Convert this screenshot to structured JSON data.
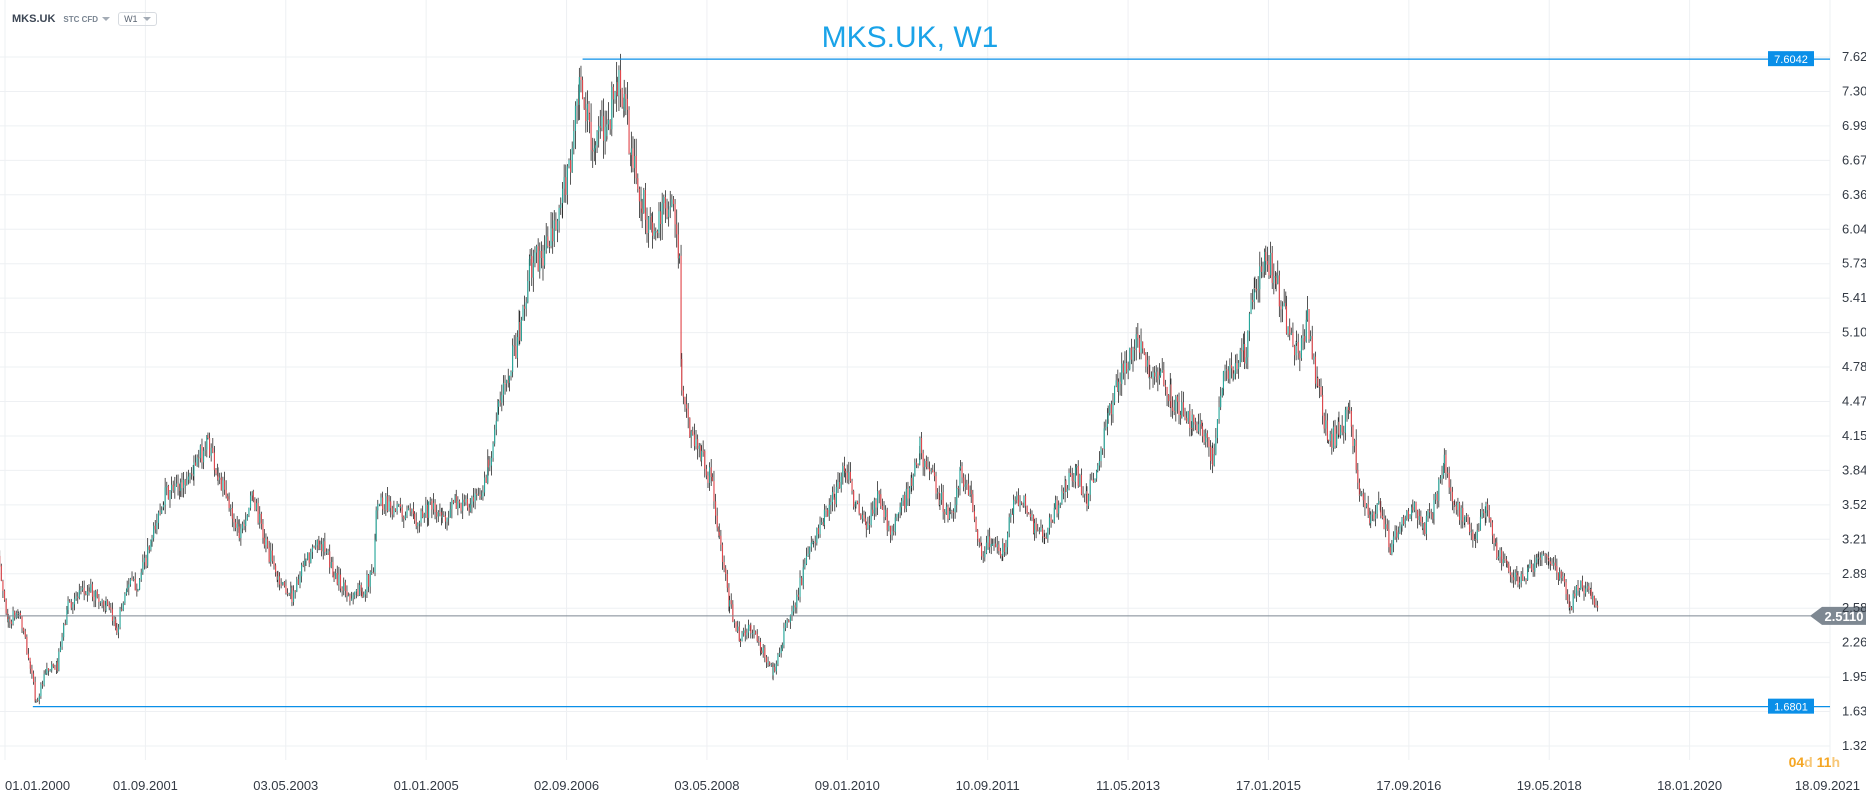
{
  "header": {
    "symbol": "MKS.UK",
    "instrument_type": "STC CFD",
    "timeframe": "W1"
  },
  "countdown": {
    "days": "04",
    "days_unit": "d",
    "hours": "11",
    "hours_unit": "h"
  },
  "colors": {
    "up": "#26a69a",
    "down": "#e0474c",
    "wick": "#2b2b2b",
    "hline": "#0a8fe8",
    "title": "#1aa3e8",
    "current_price": "#7e8892",
    "grid": "#eef0f3",
    "axis_text": "#333a44"
  },
  "chart_data": {
    "type": "candlestick",
    "title": "MKS.UK, W1",
    "y_ticks": [
      "7.6239",
      "7.3087",
      "6.9935",
      "6.6783",
      "6.3631",
      "6.0479",
      "5.7327",
      "5.4176",
      "5.1024",
      "4.7872",
      "4.4720",
      "4.1568",
      "3.8416",
      "3.5264",
      "3.2112",
      "2.8960",
      "2.5808",
      "2.2656",
      "1.9505",
      "1.6353",
      "1.3201"
    ],
    "x_ticks": [
      "01.01.2000",
      "01.09.2001",
      "03.05.2003",
      "01.01.2005",
      "02.09.2006",
      "03.05.2008",
      "09.01.2010",
      "10.09.2011",
      "11.05.2013",
      "17.01.2015",
      "17.09.2016",
      "19.05.2018",
      "18.01.2020",
      "18.09.2021"
    ],
    "x_range": [
      "2000-01-01",
      "2021-09-18"
    ],
    "y_range": [
      1.3201,
      7.6239
    ],
    "horizontal_lines": [
      {
        "label": "7.6042",
        "value": 7.6042,
        "start": "2006-11-15"
      },
      {
        "label": "1.6801",
        "value": 1.6801,
        "start": "2000-05-01"
      }
    ],
    "current_price": {
      "label": "2.5110",
      "value": 2.511
    },
    "series": [
      {
        "name": "",
        "path": [
          [
            "1999-11-25",
            3.1
          ],
          [
            "2000-01-15",
            2.45
          ],
          [
            "2000-03-01",
            2.55
          ],
          [
            "2000-04-20",
            2.05
          ],
          [
            "2000-05-15",
            1.72
          ],
          [
            "2000-07-01",
            2.0
          ],
          [
            "2000-08-15",
            2.05
          ],
          [
            "2000-10-01",
            2.62
          ],
          [
            "2001-01-01",
            2.75
          ],
          [
            "2001-03-15",
            2.6
          ],
          [
            "2001-05-01",
            2.4
          ],
          [
            "2001-06-15",
            2.8
          ],
          [
            "2001-08-01",
            2.8
          ],
          [
            "2001-10-01",
            3.2
          ],
          [
            "2001-11-20",
            3.6
          ],
          [
            "2002-02-01",
            3.7
          ],
          [
            "2002-04-01",
            3.85
          ],
          [
            "2002-06-01",
            4.12
          ],
          [
            "2002-07-15",
            3.8
          ],
          [
            "2002-09-01",
            3.5
          ],
          [
            "2002-10-15",
            3.3
          ],
          [
            "2002-12-15",
            3.6
          ],
          [
            "2003-02-01",
            3.2
          ],
          [
            "2003-04-01",
            2.85
          ],
          [
            "2003-06-01",
            2.7
          ],
          [
            "2003-08-01",
            3.0
          ],
          [
            "2003-10-01",
            3.2
          ],
          [
            "2003-12-01",
            2.9
          ],
          [
            "2004-02-01",
            2.7
          ],
          [
            "2004-04-01",
            2.75
          ],
          [
            "2004-05-20",
            2.9
          ],
          [
            "2004-06-01",
            3.55
          ],
          [
            "2004-07-20",
            3.55
          ],
          [
            "2004-09-15",
            3.45
          ],
          [
            "2004-11-15",
            3.4
          ],
          [
            "2005-01-15",
            3.5
          ],
          [
            "2005-03-15",
            3.4
          ],
          [
            "2005-05-15",
            3.55
          ],
          [
            "2005-07-15",
            3.5
          ],
          [
            "2005-09-01",
            3.6
          ],
          [
            "2005-10-01",
            3.9
          ],
          [
            "2005-11-15",
            4.4
          ],
          [
            "2006-01-01",
            4.8
          ],
          [
            "2006-02-15",
            5.1
          ],
          [
            "2006-04-01",
            5.7
          ],
          [
            "2006-05-20",
            5.8
          ],
          [
            "2006-07-15",
            6.0
          ],
          [
            "2006-08-20",
            6.3
          ],
          [
            "2006-10-01",
            6.8
          ],
          [
            "2006-11-01",
            7.3
          ],
          [
            "2006-12-15",
            7.0
          ],
          [
            "2007-01-10",
            6.8
          ],
          [
            "2007-03-01",
            7.0
          ],
          [
            "2007-04-15",
            7.4
          ],
          [
            "2007-05-15",
            7.2
          ],
          [
            "2007-06-15",
            6.7
          ],
          [
            "2007-08-01",
            6.3
          ],
          [
            "2007-09-15",
            6.0
          ],
          [
            "2007-10-20",
            6.1
          ],
          [
            "2007-12-01",
            6.4
          ],
          [
            "2008-01-10",
            5.8
          ],
          [
            "2008-01-20",
            4.5
          ],
          [
            "2008-03-01",
            4.2
          ],
          [
            "2008-04-15",
            4.0
          ],
          [
            "2008-06-01",
            3.7
          ],
          [
            "2008-07-01",
            3.2
          ],
          [
            "2008-08-15",
            2.6
          ],
          [
            "2008-10-01",
            2.3
          ],
          [
            "2008-11-15",
            2.4
          ],
          [
            "2009-01-01",
            2.2
          ],
          [
            "2009-02-20",
            2.0
          ],
          [
            "2009-04-01",
            2.3
          ],
          [
            "2009-05-20",
            2.6
          ],
          [
            "2009-07-01",
            2.9
          ],
          [
            "2009-08-15",
            3.2
          ],
          [
            "2009-10-01",
            3.4
          ],
          [
            "2009-11-15",
            3.6
          ],
          [
            "2010-01-01",
            3.9
          ],
          [
            "2010-02-15",
            3.5
          ],
          [
            "2010-04-01",
            3.3
          ],
          [
            "2010-05-20",
            3.6
          ],
          [
            "2010-07-15",
            3.3
          ],
          [
            "2010-09-01",
            3.5
          ],
          [
            "2010-10-15",
            3.7
          ],
          [
            "2010-11-20",
            4.05
          ],
          [
            "2011-01-01",
            3.8
          ],
          [
            "2011-02-15",
            3.6
          ],
          [
            "2011-04-01",
            3.4
          ],
          [
            "2011-05-15",
            3.8
          ],
          [
            "2011-07-01",
            3.6
          ],
          [
            "2011-08-15",
            3.1
          ],
          [
            "2011-10-01",
            3.2
          ],
          [
            "2011-11-15",
            3.1
          ],
          [
            "2012-01-01",
            3.5
          ],
          [
            "2012-02-15",
            3.6
          ],
          [
            "2012-04-01",
            3.3
          ],
          [
            "2012-05-15",
            3.2
          ],
          [
            "2012-07-01",
            3.5
          ],
          [
            "2012-08-15",
            3.7
          ],
          [
            "2012-10-01",
            3.8
          ],
          [
            "2012-11-15",
            3.6
          ],
          [
            "2013-01-01",
            3.9
          ],
          [
            "2013-02-15",
            4.3
          ],
          [
            "2013-04-01",
            4.7
          ],
          [
            "2013-05-20",
            4.9
          ],
          [
            "2013-07-01",
            5.0
          ],
          [
            "2013-08-15",
            4.7
          ],
          [
            "2013-10-01",
            4.8
          ],
          [
            "2013-11-15",
            4.5
          ],
          [
            "2014-01-01",
            4.4
          ],
          [
            "2014-02-15",
            4.3
          ],
          [
            "2014-04-01",
            4.2
          ],
          [
            "2014-05-15",
            3.95
          ],
          [
            "2014-07-01",
            4.7
          ],
          [
            "2014-08-15",
            4.8
          ],
          [
            "2014-10-01",
            4.9
          ],
          [
            "2014-11-15",
            5.5
          ],
          [
            "2015-01-01",
            5.8
          ],
          [
            "2015-02-15",
            5.6
          ],
          [
            "2015-04-01",
            5.2
          ],
          [
            "2015-05-15",
            4.9
          ],
          [
            "2015-07-01",
            5.2
          ],
          [
            "2015-08-15",
            4.6
          ],
          [
            "2015-10-01",
            4.1
          ],
          [
            "2015-11-15",
            4.2
          ],
          [
            "2016-01-01",
            4.4
          ],
          [
            "2016-02-15",
            3.6
          ],
          [
            "2016-04-01",
            3.4
          ],
          [
            "2016-05-15",
            3.5
          ],
          [
            "2016-06-25",
            3.1
          ],
          [
            "2016-08-15",
            3.4
          ],
          [
            "2016-10-01",
            3.5
          ],
          [
            "2016-11-15",
            3.3
          ],
          [
            "2017-01-01",
            3.5
          ],
          [
            "2017-02-15",
            3.9
          ],
          [
            "2017-04-01",
            3.5
          ],
          [
            "2017-05-15",
            3.4
          ],
          [
            "2017-07-01",
            3.2
          ],
          [
            "2017-08-15",
            3.5
          ],
          [
            "2017-10-01",
            3.1
          ],
          [
            "2017-11-15",
            3.0
          ],
          [
            "2018-01-01",
            2.8
          ],
          [
            "2018-02-15",
            2.9
          ],
          [
            "2018-04-01",
            3.0
          ],
          [
            "2018-05-15",
            3.0
          ],
          [
            "2018-07-01",
            2.9
          ],
          [
            "2018-08-15",
            2.6
          ],
          [
            "2018-10-01",
            2.8
          ],
          [
            "2018-11-15",
            2.7
          ],
          [
            "2018-12-20",
            2.5
          ]
        ]
      }
    ]
  }
}
